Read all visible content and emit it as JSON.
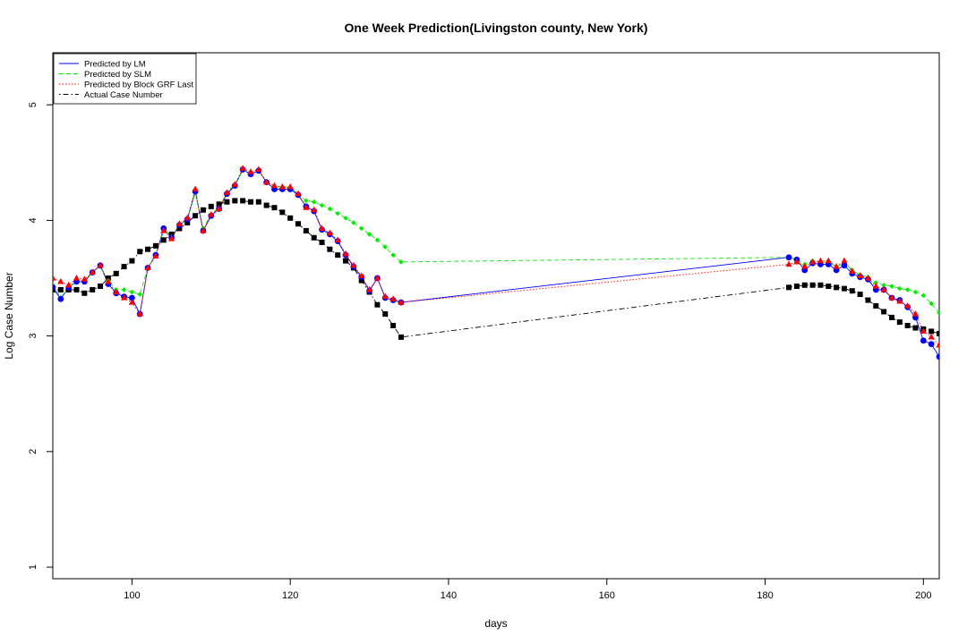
{
  "chart_data": {
    "type": "line",
    "title": "One Week Prediction(Livingston county, New York)",
    "xlabel": "days",
    "ylabel": "Log Case Number",
    "xlim": [
      90,
      202
    ],
    "ylim": [
      0.9,
      5.45
    ],
    "x_ticks": [
      100,
      120,
      140,
      160,
      180,
      200
    ],
    "y_ticks": [
      1,
      2,
      3,
      4,
      5
    ],
    "grid": false,
    "legend_position": "top-left",
    "x": [
      90,
      91,
      92,
      93,
      94,
      95,
      96,
      97,
      98,
      99,
      100,
      101,
      102,
      103,
      104,
      105,
      106,
      107,
      108,
      109,
      110,
      111,
      112,
      113,
      114,
      115,
      116,
      117,
      118,
      119,
      120,
      121,
      122,
      123,
      124,
      125,
      126,
      127,
      128,
      129,
      130,
      131,
      132,
      133,
      134,
      183,
      184,
      185,
      186,
      187,
      188,
      189,
      190,
      191,
      192,
      193,
      194,
      195,
      196,
      197,
      198,
      199,
      200,
      201,
      202
    ],
    "series": [
      {
        "name": "Predicted by LM",
        "color": "#0000ff",
        "line_style": "solid",
        "marker": "circle",
        "values": [
          3.42,
          3.32,
          3.42,
          3.47,
          3.47,
          3.55,
          3.61,
          3.45,
          3.37,
          3.34,
          3.33,
          3.19,
          3.59,
          3.7,
          3.93,
          3.85,
          3.96,
          4.01,
          4.25,
          3.91,
          4.04,
          4.1,
          4.23,
          4.3,
          4.44,
          4.4,
          4.43,
          4.33,
          4.27,
          4.27,
          4.27,
          4.22,
          4.12,
          4.08,
          3.92,
          3.88,
          3.82,
          3.7,
          3.6,
          3.51,
          3.39,
          3.5,
          3.33,
          3.31,
          3.29,
          3.68,
          3.66,
          3.57,
          3.63,
          3.62,
          3.62,
          3.57,
          3.61,
          3.54,
          3.51,
          3.49,
          3.4,
          3.4,
          3.33,
          3.31,
          3.25,
          3.16,
          2.96,
          2.93,
          2.82
        ]
      },
      {
        "name": "Predicted by SLM",
        "color": "#00ee00",
        "line_style": "dashed",
        "marker": "diamond",
        "values": [
          3.44,
          3.33,
          3.42,
          3.48,
          3.48,
          3.55,
          3.6,
          3.48,
          3.4,
          3.4,
          3.38,
          3.36,
          3.59,
          3.7,
          3.92,
          3.86,
          3.96,
          4.01,
          4.24,
          3.93,
          4.05,
          4.11,
          4.24,
          4.31,
          4.43,
          4.42,
          4.43,
          4.34,
          4.29,
          4.29,
          4.28,
          4.23,
          4.17,
          4.16,
          4.13,
          4.1,
          4.06,
          4.02,
          3.98,
          3.93,
          3.88,
          3.83,
          3.77,
          3.7,
          3.64,
          3.68,
          3.66,
          3.62,
          3.65,
          3.64,
          3.64,
          3.6,
          3.63,
          3.57,
          3.53,
          3.51,
          3.46,
          3.44,
          3.43,
          3.41,
          3.4,
          3.38,
          3.35,
          3.28,
          3.2
        ]
      },
      {
        "name": "Predicted by Block GRF Last",
        "color": "#ff0000",
        "line_style": "dotted",
        "marker": "triangle",
        "values": [
          3.5,
          3.47,
          3.44,
          3.5,
          3.49,
          3.55,
          3.61,
          3.47,
          3.38,
          3.33,
          3.29,
          3.19,
          3.59,
          3.69,
          3.91,
          3.84,
          3.97,
          4.02,
          4.27,
          3.91,
          4.05,
          4.1,
          4.24,
          4.31,
          4.45,
          4.42,
          4.44,
          4.33,
          4.3,
          4.29,
          4.29,
          4.23,
          4.11,
          4.09,
          3.93,
          3.89,
          3.83,
          3.71,
          3.61,
          3.52,
          3.4,
          3.5,
          3.34,
          3.32,
          3.29,
          3.62,
          3.64,
          3.6,
          3.64,
          3.65,
          3.65,
          3.6,
          3.65,
          3.56,
          3.52,
          3.5,
          3.43,
          3.4,
          3.33,
          3.3,
          3.26,
          3.19,
          3.04,
          2.99,
          2.92
        ]
      },
      {
        "name": "Actual Case Number",
        "color": "#000000",
        "line_style": "dotdash",
        "marker": "square",
        "values": [
          3.4,
          3.4,
          3.4,
          3.4,
          3.37,
          3.4,
          3.43,
          3.5,
          3.54,
          3.6,
          3.65,
          3.73,
          3.75,
          3.78,
          3.83,
          3.88,
          3.93,
          3.98,
          4.04,
          4.09,
          4.12,
          4.14,
          4.16,
          4.17,
          4.17,
          4.16,
          4.16,
          4.13,
          4.11,
          4.07,
          4.02,
          3.97,
          3.91,
          3.85,
          3.81,
          3.75,
          3.7,
          3.65,
          3.59,
          3.48,
          3.38,
          3.27,
          3.19,
          3.09,
          2.99,
          3.42,
          3.43,
          3.44,
          3.44,
          3.44,
          3.43,
          3.42,
          3.41,
          3.39,
          3.36,
          3.31,
          3.26,
          3.21,
          3.16,
          3.12,
          3.09,
          3.07,
          3.06,
          3.04,
          3.02
        ]
      }
    ]
  }
}
